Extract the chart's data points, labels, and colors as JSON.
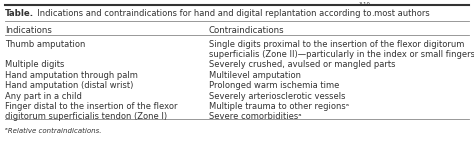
{
  "title_bold": "Table.",
  "title_normal": "  Indications and contraindications for hand and digital replantation according to most authors ",
  "title_superscript": "3-10",
  "col_headers": [
    "Indications",
    "Contraindications"
  ],
  "indications": [
    "Thumb amputation",
    "Multiple digits",
    "Hand amputation through palm",
    "Hand amputation (distal wrist)",
    "Any part in a child",
    "Finger distal to the insertion of the flexor",
    "digitorum superficialis tendon (Zone I)"
  ],
  "contraindications": [
    "Single digits proximal to the insertion of the flexor digitorum",
    "superficialis (Zone II)—particularly in the index or small fingers",
    "Severely crushed, avulsed or mangled parts",
    "Multilevel amputation",
    "Prolonged warm ischemia time",
    "Severely arteriosclerotic vessels",
    "Multiple trauma to other regionsᵃ",
    "Severe comorbiditiesᵃ"
  ],
  "footnote": "ᵃRelative contraindications.",
  "bg_color": "#ffffff",
  "text_color": "#333333",
  "line_color": "#888888",
  "title_line_color": "#333333",
  "font_size": 6.0,
  "header_font_size": 6.2,
  "col_split": 0.44
}
